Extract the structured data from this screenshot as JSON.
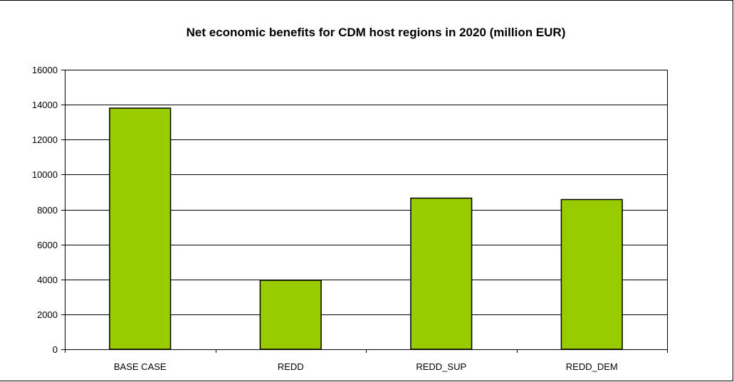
{
  "chart_data": {
    "type": "bar",
    "title": "Net economic benefits for CDM host regions in 2020 (million EUR)",
    "xlabel": "",
    "ylabel": "",
    "categories": [
      "BASE CASE",
      "REDD",
      "REDD_SUP",
      "REDD_DEM"
    ],
    "values": [
      13800,
      3950,
      8650,
      8570
    ],
    "ylim": [
      0,
      16000
    ],
    "yticks": [
      0,
      2000,
      4000,
      6000,
      8000,
      10000,
      12000,
      14000,
      16000
    ],
    "grid": true,
    "legend": "none",
    "colors": {
      "bar_fill": "#99cc00",
      "bar_stroke": "#000000",
      "grid": "#000000",
      "axis": "#000000"
    }
  }
}
